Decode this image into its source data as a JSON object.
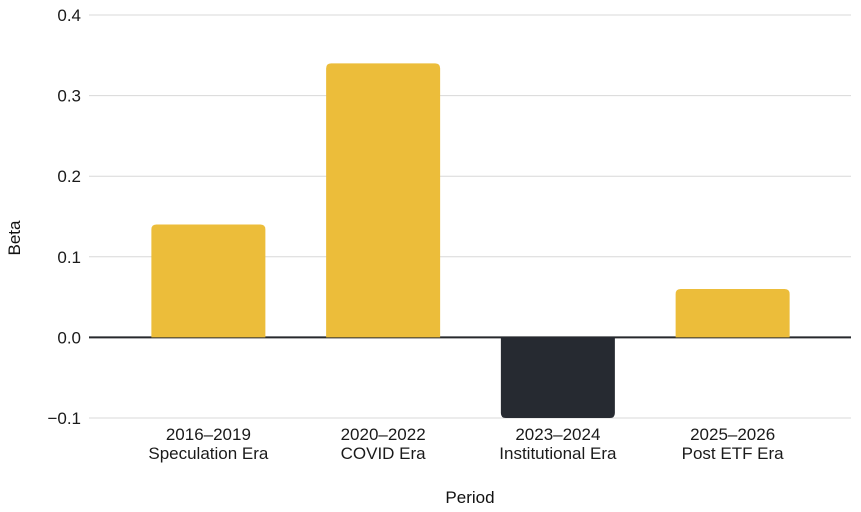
{
  "chart_data": {
    "type": "bar",
    "title": "",
    "xlabel": "Period",
    "ylabel": "Beta",
    "categories": [
      "2016–2019",
      "2020–2022",
      "2023–2024",
      "2025–2026"
    ],
    "category_sublabels": [
      "Speculation Era",
      "COVID Era",
      "Institutional Era",
      "Post ETF Era"
    ],
    "values": [
      0.14,
      0.34,
      -0.1,
      0.06
    ],
    "bar_colors": [
      "#ECBD3A",
      "#ECBD3A",
      "#262A31",
      "#ECBD3A"
    ],
    "ylim": [
      -0.1,
      0.4
    ],
    "ytick_values": [
      -0.1,
      0.0,
      0.1,
      0.2,
      0.3,
      0.4
    ],
    "ytick_labels": [
      "−0.1",
      "0.0",
      "0.1",
      "0.2",
      "0.3",
      "0.4"
    ],
    "grid": true,
    "legend_position": "none",
    "colors": {
      "bar_primary": "#ECBD3A",
      "bar_negative": "#262A31",
      "gridline": "#D8D8D8",
      "zero_axis": "#26292C",
      "text": "#1A1A1A",
      "background": "#FFFFFF"
    }
  }
}
